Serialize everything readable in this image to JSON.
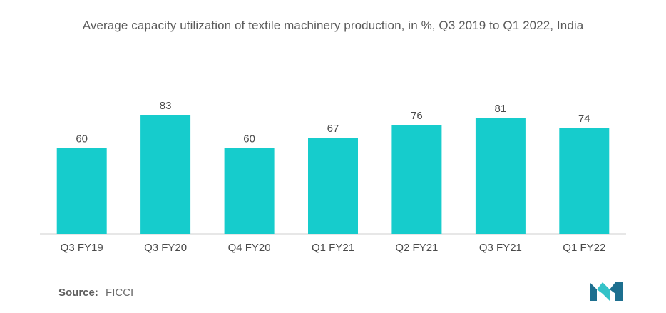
{
  "chart_data": {
    "type": "bar",
    "title": "Average capacity utilization of textile machinery production, in %, Q3 2019 to Q1 2022, India",
    "categories": [
      "Q3 FY19",
      "Q3 FY20",
      "Q4 FY20",
      "Q1 FY21",
      "Q2 FY21",
      "Q3 FY21",
      "Q1 FY22"
    ],
    "values": [
      60,
      83,
      60,
      67,
      76,
      81,
      74
    ],
    "xlabel": "",
    "ylabel": "",
    "ylim": [
      0,
      83
    ],
    "grid": false,
    "legend": "none",
    "bar_color": "#16CCCC",
    "data_labels": true
  },
  "source": {
    "label": "Source:",
    "value": "FICCI"
  },
  "colors": {
    "bar": "#16CCCC",
    "axis": "#cfcfcf",
    "logo_dark": "#1d6f8f",
    "logo_light": "#34c3c8"
  },
  "logo": {
    "icon": "mordor-intelligence-logo-icon"
  }
}
